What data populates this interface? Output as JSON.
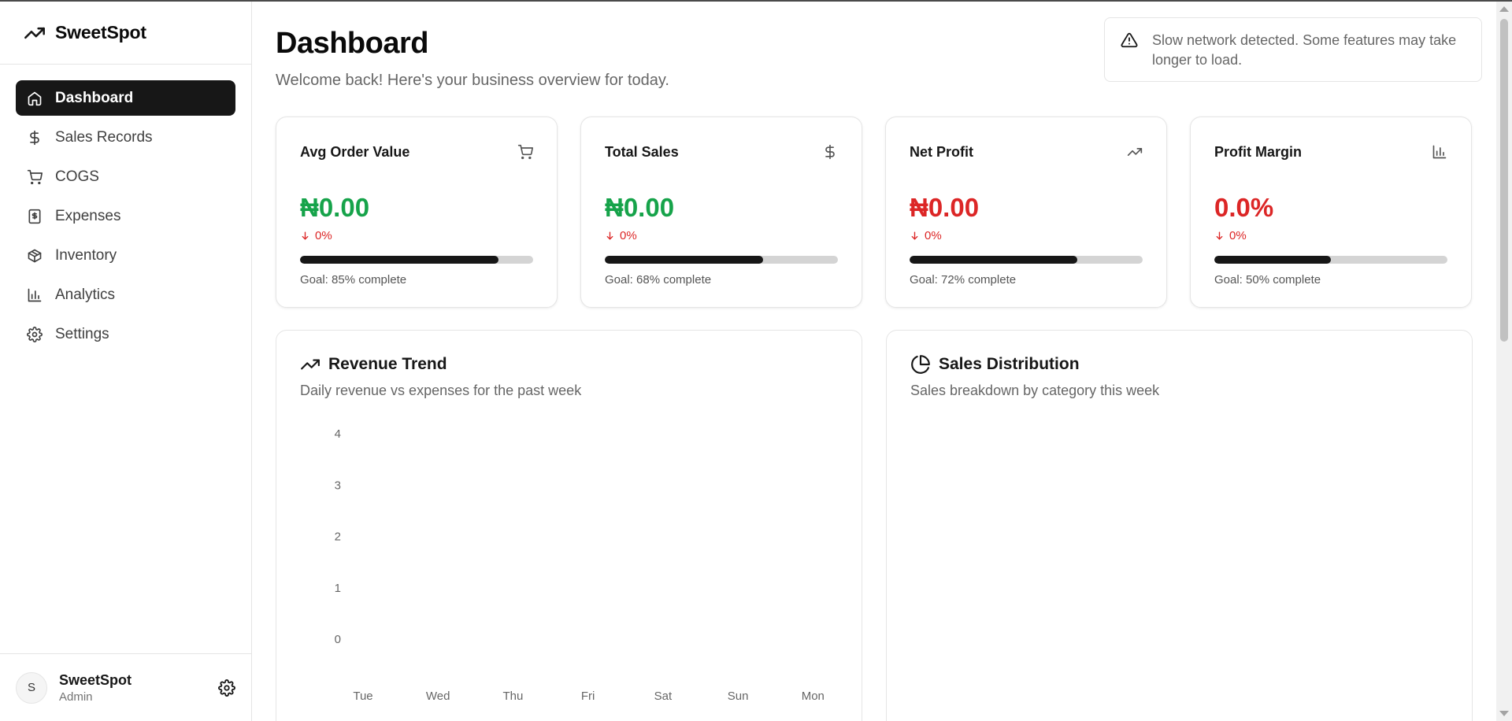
{
  "app": {
    "name": "SweetSpot"
  },
  "sidebar": {
    "items": [
      {
        "label": "Dashboard",
        "icon": "home-icon",
        "active": true
      },
      {
        "label": "Sales Records",
        "icon": "dollar-icon"
      },
      {
        "label": "COGS",
        "icon": "cart-icon"
      },
      {
        "label": "Expenses",
        "icon": "receipt-icon"
      },
      {
        "label": "Inventory",
        "icon": "package-icon"
      },
      {
        "label": "Analytics",
        "icon": "bar-chart-icon"
      },
      {
        "label": "Settings",
        "icon": "gear-icon"
      }
    ],
    "user": {
      "initial": "S",
      "name": "SweetSpot",
      "role": "Admin"
    }
  },
  "header": {
    "title": "Dashboard",
    "subtitle": "Welcome back! Here's your business overview for today."
  },
  "alert": {
    "text": "Slow network detected. Some features may take longer to load.",
    "icon": "warning-icon"
  },
  "kpis": [
    {
      "title": "Avg Order Value",
      "icon": "cart-icon",
      "value": "₦0.00",
      "change": "0%",
      "goal_text": "Goal: 85% complete",
      "goal_pct": 85,
      "value_color": "#16a34a"
    },
    {
      "title": "Total Sales",
      "icon": "dollar-icon",
      "value": "₦0.00",
      "change": "0%",
      "goal_text": "Goal: 68% complete",
      "goal_pct": 68,
      "value_color": "#16a34a"
    },
    {
      "title": "Net Profit",
      "icon": "trending-up-icon",
      "value": "₦0.00",
      "change": "0%",
      "goal_text": "Goal: 72% complete",
      "goal_pct": 72,
      "value_color": "#dc2626"
    },
    {
      "title": "Profit Margin",
      "icon": "bar-chart-icon",
      "value": "0.0%",
      "change": "0%",
      "goal_text": "Goal: 50% complete",
      "goal_pct": 50,
      "value_color": "#dc2626"
    }
  ],
  "revenue_panel": {
    "title": "Revenue Trend",
    "subtitle": "Daily revenue vs expenses for the past week"
  },
  "distribution_panel": {
    "title": "Sales Distribution",
    "subtitle": "Sales breakdown by category this week"
  },
  "chart_data": {
    "type": "line",
    "categories": [
      "Tue",
      "Wed",
      "Thu",
      "Fri",
      "Sat",
      "Sun",
      "Mon"
    ],
    "yticks": [
      0,
      1,
      2,
      3,
      4
    ],
    "ylim": [
      0,
      4
    ],
    "series": [],
    "grid": false
  }
}
